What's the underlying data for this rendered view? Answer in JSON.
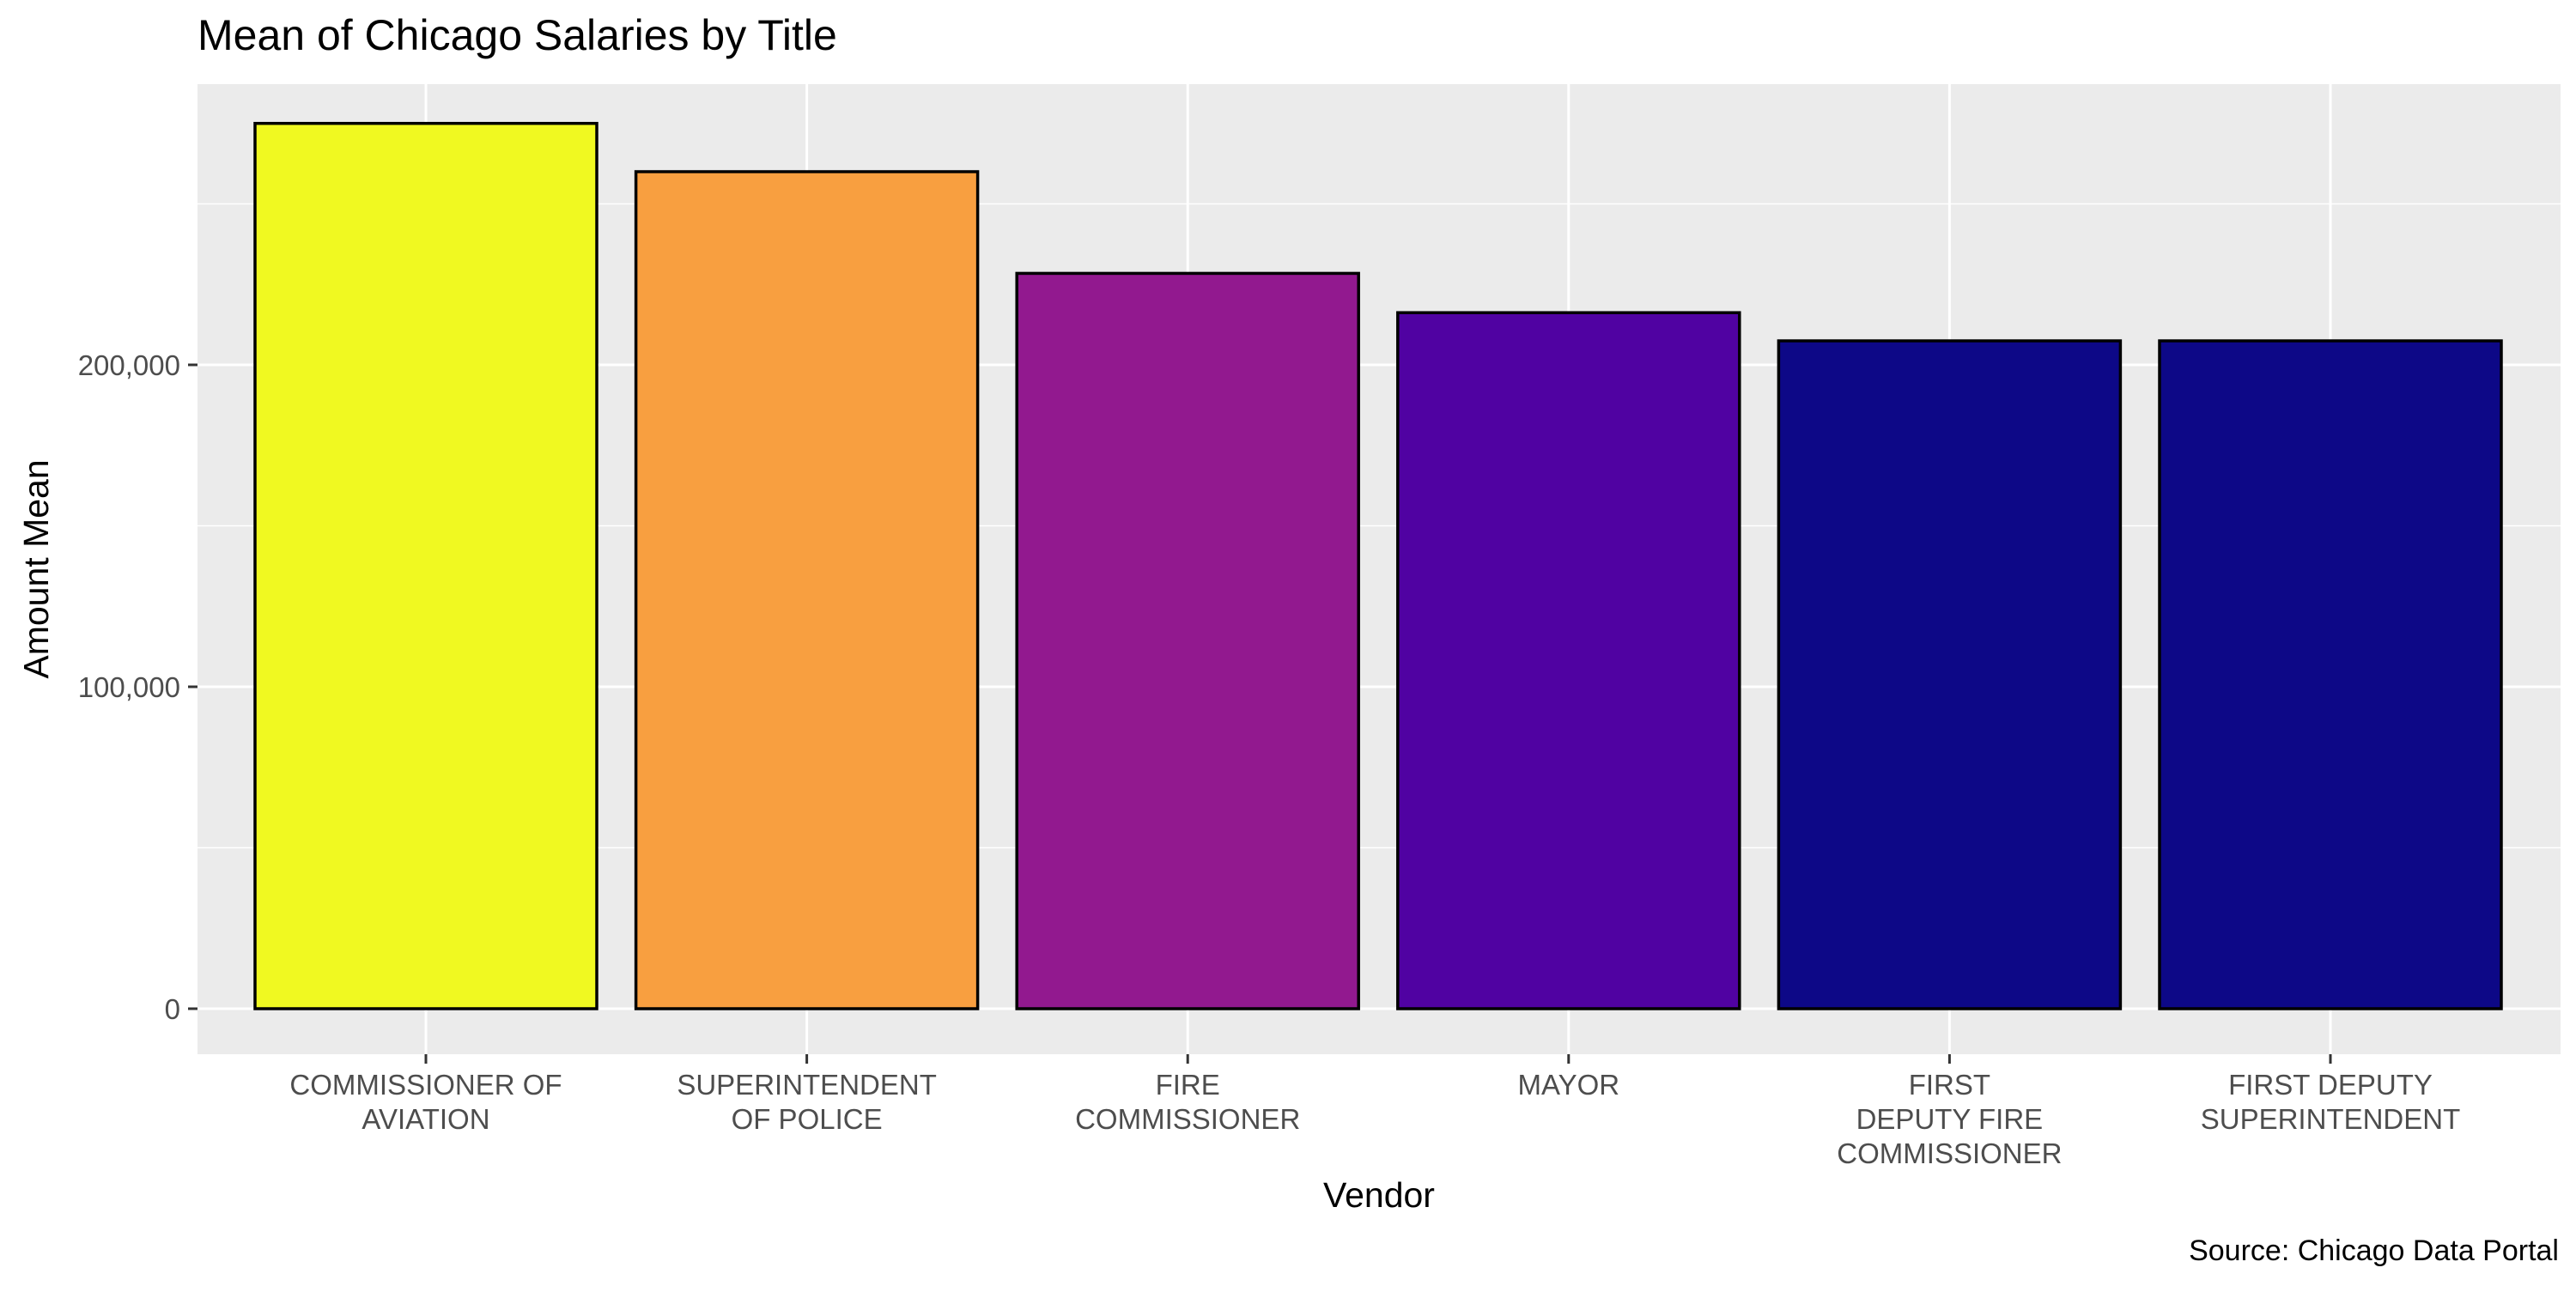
{
  "chart_data": {
    "type": "bar",
    "title": "Mean of Chicago Salaries by Title",
    "xlabel": "Vendor",
    "ylabel": "Amount Mean",
    "caption": "Source: Chicago Data Portal",
    "categories": [
      [
        "COMMISSIONER OF",
        "AVIATION"
      ],
      [
        "SUPERINTENDENT",
        "OF POLICE"
      ],
      [
        "FIRE",
        "COMMISSIONER"
      ],
      [
        "MAYOR"
      ],
      [
        "FIRST",
        "DEPUTY FIRE",
        "COMMISSIONER"
      ],
      [
        "FIRST DEPUTY",
        "SUPERINTENDENT"
      ]
    ],
    "values": [
      275004,
      260004,
      228420,
      216210,
      207456,
      207456
    ],
    "bar_colors": [
      "#F0F921",
      "#F89F40",
      "#92198F",
      "#5002A2",
      "#0D0887",
      "#0D0887"
    ],
    "ylim": [
      0,
      290000
    ],
    "yticks": [
      0,
      100000,
      200000
    ],
    "ytick_labels": [
      "0",
      "100,000",
      "200,000"
    ],
    "grid": true,
    "legend": "none",
    "colors": {
      "panel": "#EBEBEB",
      "grid": "#FFFFFF",
      "bar_outline": "#000000",
      "axis_text": "#4D4D4D",
      "title_text": "#000000"
    }
  }
}
